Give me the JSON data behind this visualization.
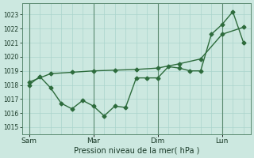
{
  "background_color": "#cce8e0",
  "grid_color": "#aad4cc",
  "line_color": "#2d6b3c",
  "xlabel": "Pression niveau de la mer( hPa )",
  "ylim": [
    1014.5,
    1023.8
  ],
  "yticks": [
    1015,
    1016,
    1017,
    1018,
    1019,
    1020,
    1021,
    1022,
    1023
  ],
  "xtick_labels": [
    "Sam",
    "Mar",
    "Dim",
    "Lun"
  ],
  "xtick_positions": [
    0,
    36,
    72,
    108
  ],
  "vline_positions": [
    0,
    36,
    72,
    108
  ],
  "line1_x": [
    0,
    6,
    12,
    18,
    24,
    30,
    36,
    42,
    48,
    54,
    60,
    66,
    72,
    78,
    84,
    90,
    96,
    102,
    108,
    114,
    120
  ],
  "line1_y": [
    1018.0,
    1018.6,
    1017.8,
    1016.7,
    1016.3,
    1016.9,
    1016.5,
    1015.8,
    1016.5,
    1016.4,
    1018.5,
    1018.5,
    1018.5,
    1019.3,
    1019.2,
    1019.0,
    1019.0,
    1021.6,
    1022.3,
    1023.2,
    1021.0
  ],
  "line2_x": [
    0,
    12,
    24,
    36,
    48,
    60,
    72,
    84,
    96,
    108,
    120
  ],
  "line2_y": [
    1018.2,
    1018.8,
    1018.9,
    1019.0,
    1019.05,
    1019.1,
    1019.2,
    1019.5,
    1019.85,
    1021.6,
    1022.1
  ],
  "marker_size": 2.5,
  "line_width": 1.0
}
